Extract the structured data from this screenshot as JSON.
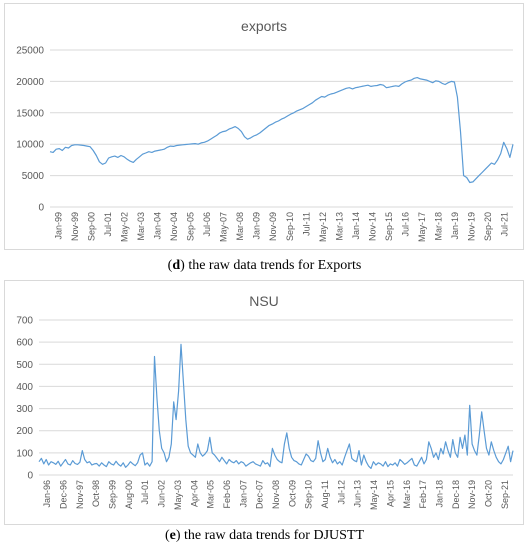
{
  "chart_data": [
    {
      "type": "line",
      "title": "exports",
      "xlabel": "",
      "ylabel": "",
      "ylim": [
        0,
        25000
      ],
      "yticks": [
        0,
        5000,
        10000,
        15000,
        20000,
        25000
      ],
      "grid": "horizontal",
      "legend": "none",
      "color": "#5b9bd5",
      "x_tick_labels": [
        "Jan-99",
        "Nov-99",
        "Sep-00",
        "Jul-01",
        "May-02",
        "Mar-03",
        "Jan-04",
        "Nov-04",
        "Sep-05",
        "Jul-06",
        "May-07",
        "Mar-08",
        "Jan-09",
        "Nov-09",
        "Sep-10",
        "Jul-11",
        "May-12",
        "Mar-13",
        "Jan-14",
        "Nov-14",
        "Sep-15",
        "Jul-16",
        "May-17",
        "Mar-18",
        "Jan-19",
        "Nov-19",
        "Sep-20",
        "Jul-21"
      ],
      "series": [
        {
          "values": [
            8800,
            8700,
            9200,
            9300,
            9000,
            9500,
            9400,
            9800,
            9900,
            9900,
            9850,
            9800,
            9700,
            9600,
            9000,
            8200,
            7200,
            6800,
            7000,
            7800,
            8000,
            8100,
            7900,
            8200,
            8000,
            7600,
            7300,
            7100,
            7600,
            8000,
            8400,
            8600,
            8800,
            8700,
            8900,
            9000,
            9100,
            9200,
            9500,
            9700,
            9650,
            9800,
            9850,
            9900,
            9950,
            10000,
            10050,
            10100,
            10000,
            10200,
            10300,
            10500,
            10800,
            11100,
            11400,
            11800,
            12000,
            12100,
            12400,
            12600,
            12800,
            12500,
            12000,
            11200,
            10800,
            11000,
            11300,
            11500,
            11800,
            12200,
            12600,
            13000,
            13200,
            13500,
            13700,
            14000,
            14200,
            14500,
            14800,
            15000,
            15300,
            15500,
            15700,
            16000,
            16300,
            16600,
            17000,
            17300,
            17600,
            17500,
            17800,
            18000,
            18100,
            18300,
            18500,
            18700,
            18900,
            19000,
            18800,
            19000,
            19100,
            19200,
            19300,
            19400,
            19200,
            19300,
            19350,
            19500,
            19400,
            19000,
            19100,
            19200,
            19300,
            19200,
            19600,
            19900,
            20100,
            20200,
            20500,
            20600,
            20400,
            20300,
            20200,
            20000,
            19800,
            20100,
            20000,
            19700,
            19500,
            19800,
            20000,
            19900,
            17500,
            12000,
            5000,
            4700,
            3900,
            4000,
            4500,
            5000,
            5500,
            6000,
            6500,
            7000,
            6800,
            7500,
            8500,
            10300,
            9300,
            7900,
            10000
          ]
        }
      ]
    },
    {
      "type": "line",
      "title": "NSU",
      "xlabel": "",
      "ylabel": "",
      "ylim": [
        0,
        700
      ],
      "yticks": [
        0,
        100,
        200,
        300,
        400,
        500,
        600,
        700
      ],
      "grid": "horizontal",
      "legend": "none",
      "color": "#5b9bd5",
      "x_tick_labels": [
        "Jan-96",
        "Dec-96",
        "Nov-97",
        "Oct-98",
        "Sep-99",
        "Aug-00",
        "Jul-01",
        "Jun-02",
        "May-03",
        "Apr-04",
        "Mar-05",
        "Feb-06",
        "Jan-07",
        "Dec-07",
        "Nov-08",
        "Oct-09",
        "Sep-10",
        "Aug-11",
        "Jul-12",
        "Jun-13",
        "May-14",
        "Apr-15",
        "Mar-16",
        "Feb-17",
        "Jan-18",
        "Dec-18",
        "Nov-19",
        "Oct-20",
        "Sep-21"
      ],
      "series": [
        {
          "values": [
            60,
            75,
            50,
            70,
            45,
            60,
            55,
            48,
            62,
            40,
            55,
            70,
            50,
            45,
            65,
            52,
            48,
            58,
            110,
            70,
            55,
            60,
            45,
            50,
            52,
            40,
            55,
            45,
            38,
            60,
            50,
            45,
            62,
            48,
            40,
            55,
            35,
            45,
            60,
            50,
            42,
            55,
            90,
            100,
            45,
            55,
            40,
            60,
            535,
            350,
            200,
            120,
            100,
            60,
            80,
            140,
            330,
            250,
            380,
            590,
            420,
            250,
            130,
            100,
            90,
            80,
            140,
            100,
            85,
            95,
            110,
            170,
            100,
            90,
            75,
            60,
            80,
            65,
            50,
            70,
            60,
            55,
            65,
            50,
            60,
            55,
            40,
            48,
            55,
            60,
            50,
            45,
            40,
            65,
            50,
            55,
            38,
            120,
            90,
            70,
            60,
            55,
            140,
            190,
            120,
            80,
            65,
            60,
            50,
            45,
            70,
            95,
            85,
            65,
            60,
            75,
            155,
            100,
            60,
            70,
            120,
            80,
            55,
            70,
            50,
            60,
            45,
            80,
            110,
            140,
            75,
            65,
            60,
            110,
            45,
            90,
            60,
            40,
            30,
            60,
            45,
            55,
            50,
            40,
            60,
            38,
            50,
            45,
            55,
            40,
            70,
            60,
            48,
            55,
            65,
            75,
            45,
            40,
            60,
            80,
            50,
            70,
            150,
            120,
            80,
            100,
            70,
            120,
            95,
            150,
            110,
            80,
            160,
            100,
            80,
            170,
            120,
            180,
            90,
            315,
            140,
            110,
            90,
            180,
            285,
            200,
            120,
            90,
            150,
            110,
            80,
            60,
            50,
            70,
            100,
            130,
            60,
            110
          ]
        }
      ]
    }
  ],
  "captions": {
    "d_letter": "d",
    "d_text": " the raw data trends for Exports",
    "e_letter": "e",
    "e_text": " the raw data trends for DJUSTT"
  }
}
